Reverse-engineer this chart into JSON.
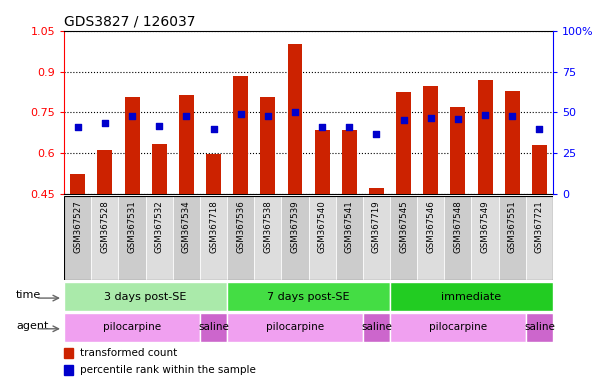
{
  "title": "GDS3827 / 126037",
  "samples": [
    "GSM367527",
    "GSM367528",
    "GSM367531",
    "GSM367532",
    "GSM367534",
    "GSM367718",
    "GSM367536",
    "GSM367538",
    "GSM367539",
    "GSM367540",
    "GSM367541",
    "GSM367719",
    "GSM367545",
    "GSM367546",
    "GSM367548",
    "GSM367549",
    "GSM367551",
    "GSM367721"
  ],
  "bar_heights": [
    0.525,
    0.612,
    0.805,
    0.635,
    0.815,
    0.595,
    0.885,
    0.805,
    1.0,
    0.685,
    0.685,
    0.47,
    0.825,
    0.845,
    0.77,
    0.87,
    0.83,
    0.63
  ],
  "blue_dots": [
    0.695,
    0.71,
    0.735,
    0.7,
    0.735,
    0.69,
    0.745,
    0.735,
    0.75,
    0.695,
    0.695,
    0.67,
    0.72,
    0.73,
    0.725,
    0.74,
    0.735,
    0.69
  ],
  "bar_bottom": 0.45,
  "ylim_left": [
    0.45,
    1.05
  ],
  "ylim_right": [
    0,
    100
  ],
  "yticks_left": [
    0.45,
    0.6,
    0.75,
    0.9,
    1.05
  ],
  "ytick_labels_left": [
    "0.45",
    "0.6",
    "0.75",
    "0.9",
    "1.05"
  ],
  "yticks_right": [
    0,
    25,
    50,
    75,
    100
  ],
  "ytick_labels_right": [
    "0",
    "25",
    "50",
    "75",
    "100%"
  ],
  "bar_color": "#cc2200",
  "dot_color": "#0000cc",
  "groups": {
    "time": [
      {
        "label": "3 days post-SE",
        "start": 0,
        "end": 6,
        "color": "#aaeaaa"
      },
      {
        "label": "7 days post-SE",
        "start": 6,
        "end": 12,
        "color": "#44dd44"
      },
      {
        "label": "immediate",
        "start": 12,
        "end": 18,
        "color": "#22cc22"
      }
    ],
    "agent": [
      {
        "label": "pilocarpine",
        "start": 0,
        "end": 5,
        "color": "#f0a0f0"
      },
      {
        "label": "saline",
        "start": 5,
        "end": 6,
        "color": "#cc66cc"
      },
      {
        "label": "pilocarpine",
        "start": 6,
        "end": 11,
        "color": "#f0a0f0"
      },
      {
        "label": "saline",
        "start": 11,
        "end": 12,
        "color": "#cc66cc"
      },
      {
        "label": "pilocarpine",
        "start": 12,
        "end": 17,
        "color": "#f0a0f0"
      },
      {
        "label": "saline",
        "start": 17,
        "end": 18,
        "color": "#cc66cc"
      }
    ]
  },
  "legend_items": [
    {
      "label": "transformed count",
      "color": "#cc2200"
    },
    {
      "label": "percentile rank within the sample",
      "color": "#0000cc"
    }
  ]
}
